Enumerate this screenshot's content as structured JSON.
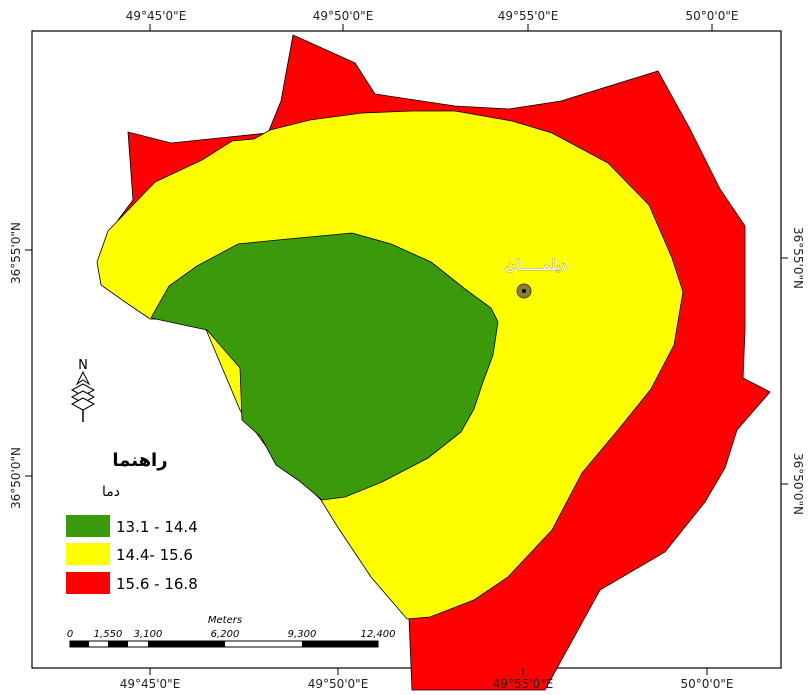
{
  "map": {
    "top_coords": [
      "49°45'0\"E",
      "49°50'0\"E",
      "49°55'0\"E",
      "50°0'0\"E"
    ],
    "bottom_coords": [
      "49°45'0\"E",
      "49°50'0\"E",
      "49°55'0\"E",
      "50°0'0\"E"
    ],
    "left_coords": [
      "36°55'0\"N",
      "36°50'0\"N"
    ],
    "right_coords": [
      "36°55'0\"N",
      "36°50'0\"N"
    ],
    "city": {
      "name": "دیلمـــــان",
      "symbol": "circle-dot"
    },
    "north_arrow": {
      "label": "N",
      "icon": "north-arrow-icon"
    },
    "legend": {
      "title": "راهنما",
      "subtitle": "دما",
      "items": [
        {
          "label": "13.1 - 14.4",
          "color": "#3a9a0c"
        },
        {
          "label": "14.4- 15.6",
          "color": "#ffff00"
        },
        {
          "label": "15.6 - 16.8",
          "color": "#ff0000"
        }
      ]
    },
    "scale_bar": {
      "unit": "Meters",
      "ticks": [
        "0",
        "1,550",
        "3,100",
        "6,200",
        "9,300",
        "12,400"
      ]
    },
    "colors": {
      "low": "#3a9a0c",
      "mid": "#ffff00",
      "high": "#ff0000",
      "city_symbol": "#8a7f38"
    }
  }
}
